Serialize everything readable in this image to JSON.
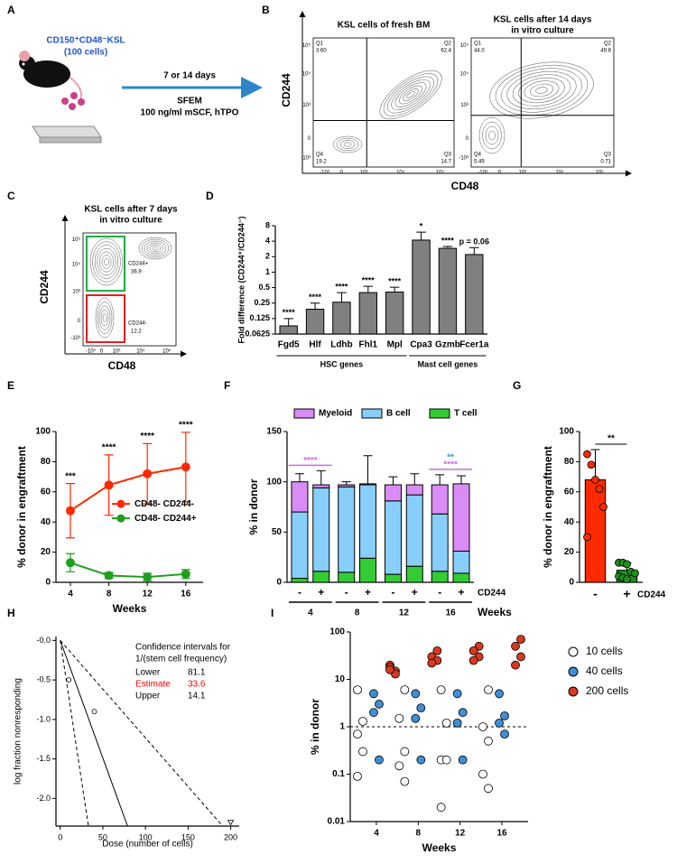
{
  "panels": [
    "A",
    "B",
    "C",
    "D",
    "E",
    "F",
    "G",
    "H",
    "I"
  ],
  "schematic": {
    "cells": "CD150⁺CD48⁻KSL",
    "count": "(100 cells)",
    "duration": "7 or 14 days",
    "medium": "SFEM",
    "factors": "100 ng/ml mSCF, hTPO"
  },
  "flow_b": {
    "plots": [
      {
        "title": [
          "KSL cells of fresh BM"
        ],
        "quadrants": [
          {
            "name": "Q1",
            "value": "3.60"
          },
          {
            "name": "Q2",
            "value": "62.4"
          },
          {
            "name": "Q4",
            "value": "19.2"
          },
          {
            "name": "Q3",
            "value": "14.7"
          }
        ]
      },
      {
        "title": [
          "KSL cells after 14 days",
          "in vitro culture"
        ],
        "quadrants": [
          {
            "name": "Q1",
            "value": "44.0"
          },
          {
            "name": "Q2",
            "value": "49.8"
          },
          {
            "name": "Q4",
            "value": "5.49"
          },
          {
            "name": "Q3",
            "value": "0.71"
          }
        ]
      }
    ],
    "ylabel": "CD244",
    "xlabel": "CD48",
    "y_tick_labels": [
      "10⁵",
      "10⁴",
      "10³",
      "0",
      "-10³"
    ],
    "x_tick_labels": [
      "-10³",
      "0",
      "10³",
      "10⁴",
      "10⁵"
    ]
  },
  "flow_c": {
    "title": [
      "KSL cells after 7 days",
      "in vitro culture"
    ],
    "gates": [
      {
        "name": "CD244+",
        "value": "36.9",
        "color": "#22aa44"
      },
      {
        "name": "CD244-",
        "value": "12.2",
        "color": "#e02020"
      }
    ],
    "ylabel": "CD244",
    "xlabel": "CD48",
    "y_tick_labels": [
      "10⁵",
      "10⁴",
      "10³",
      "0",
      "-10³"
    ],
    "x_tick_labels": [
      "-10³",
      "0",
      "10³",
      "10⁴",
      "10⁵"
    ]
  },
  "chart_data": [
    {
      "type": "bar",
      "ylabel": "Fold difference (CD244⁺/CD244⁻)",
      "categories": [
        "Fgd5",
        "Hlf",
        "Ldhb",
        "Fhl1",
        "Mpl",
        "Cpa3",
        "Gzmb",
        "Fcer1a"
      ],
      "values": [
        0.09,
        0.19,
        0.26,
        0.4,
        0.41,
        4.2,
        2.9,
        2.2
      ],
      "errors": [
        0.035,
        0.06,
        0.14,
        0.13,
        0.1,
        1.8,
        0.25,
        0.8
      ],
      "annotations": [
        "****",
        "****",
        "****",
        "****",
        "****",
        "*",
        "****",
        "p = 0.06"
      ],
      "groups": [
        {
          "label": "HSC genes",
          "members": [
            "Fgd5",
            "Hlf",
            "Ldhb",
            "Fhl1",
            "Mpl"
          ]
        },
        {
          "label": "Mast cell genes",
          "members": [
            "Cpa3",
            "Gzmb",
            "Fcer1a"
          ]
        }
      ],
      "color": "#808080",
      "log_base": 2,
      "ylim": [
        0.0625,
        8
      ],
      "yticks": [
        8,
        4,
        2,
        1,
        0.5,
        0.25,
        0.125,
        0.0625
      ]
    },
    {
      "type": "line",
      "xlabel": "Weeks",
      "ylabel": "% donor in engraftment",
      "x": [
        4,
        8,
        12,
        16
      ],
      "series": [
        {
          "name": "CD48- CD244-",
          "color": "#ff2a00",
          "values": [
            47.5,
            64.5,
            72,
            76.5
          ],
          "errors": [
            18,
            20,
            20,
            23
          ]
        },
        {
          "name": "CD48- CD244+",
          "color": "#1f9e1f",
          "values": [
            13,
            4.5,
            3.5,
            5.5
          ],
          "errors": [
            6,
            2,
            2.5,
            3
          ]
        }
      ],
      "annotations": [
        "***",
        "****",
        "****",
        "****"
      ],
      "legend": "center-right",
      "xlim": [
        2.5,
        17.8
      ],
      "xticks": [
        4,
        8,
        12,
        16
      ],
      "ylim": [
        0,
        100
      ],
      "yticks": [
        0,
        20,
        40,
        60,
        80,
        100
      ]
    },
    {
      "type": "stacked_bar",
      "ylabel": "% in donor",
      "categories": [
        "-",
        "+",
        "-",
        "+",
        "-",
        "+",
        "-",
        "+"
      ],
      "category_label": "CD244",
      "groups": [
        {
          "label": "4",
          "annotations": [
            {
              "text": "****",
              "color": "#c86ee6"
            }
          ]
        },
        {
          "label": "8"
        },
        {
          "label": "12"
        },
        {
          "label": "16",
          "annotations": [
            {
              "text": "**",
              "color": "#2a9fc9"
            },
            {
              "text": "****",
              "color": "#c86ee6"
            }
          ]
        }
      ],
      "group_label": "Weeks",
      "series": [
        {
          "name": "Myeloid",
          "color": "#d98cf5",
          "values": [
            30,
            3,
            2,
            1,
            16,
            10,
            29,
            67
          ],
          "errors": [
            8,
            14,
            3,
            28,
            8,
            11,
            10,
            8
          ]
        },
        {
          "name": "B cell",
          "color": "#87cefa",
          "values": [
            66,
            83,
            85,
            73,
            73,
            71,
            57,
            22
          ]
        },
        {
          "name": "T cell",
          "color": "#33cc33",
          "values": [
            4,
            11,
            10,
            24,
            8,
            16,
            11,
            9
          ]
        }
      ],
      "legend": "top",
      "ylim": [
        0,
        150
      ],
      "yticks": [
        0,
        50,
        100,
        150
      ]
    },
    {
      "type": "bar_dot",
      "ylabel": "% donor in engraftment",
      "xlabel": "CD244",
      "categories": [
        "-",
        "+"
      ],
      "values": [
        68,
        8
      ],
      "errors": [
        20,
        5
      ],
      "colors": [
        "#ff2a00",
        "#1f8f1f"
      ],
      "points": [
        [
          85,
          78,
          68,
          62,
          50,
          30
        ],
        [
          13,
          13,
          12,
          7,
          6,
          4,
          3,
          2
        ]
      ],
      "annotation": "**",
      "ylim": [
        0,
        100
      ],
      "yticks": [
        0,
        20,
        40,
        60,
        80,
        100
      ]
    },
    {
      "type": "limiting_dilution",
      "xlabel": "Dose (number of cells)",
      "ylabel": "log fraction nonresponding",
      "x": [
        10,
        40,
        200
      ],
      "values": [
        -0.5,
        -0.9,
        -2.3
      ],
      "markers": [
        "circle",
        "circle",
        "triangle"
      ],
      "ci_title": [
        "Confidence intervals for",
        "1/(stem cell frequency)"
      ],
      "ci": [
        {
          "label": "Lower",
          "value": 81.1,
          "dash": true
        },
        {
          "label": "Estimate",
          "value": 33.6,
          "color": "#ff0000",
          "dash": false
        },
        {
          "label": "Upper",
          "value": 14.1,
          "dash": true
        }
      ],
      "xlim": [
        -5,
        210
      ],
      "xticks": [
        0,
        50,
        100,
        150,
        200
      ],
      "ylim": [
        -2.35,
        0.05
      ],
      "yticks": [
        {
          "value": 0,
          "label": "-0.0"
        },
        -0.5,
        {
          "value": -1,
          "label": "-1.0"
        },
        -1.5,
        {
          "value": -2,
          "label": "-2.0"
        }
      ]
    },
    {
      "type": "scatter",
      "xlabel": "Weeks",
      "ylabel": "% in donor",
      "series": [
        {
          "name": "10 cells",
          "color": "#ffffff",
          "x": [
            4,
            4,
            4,
            4,
            4,
            8,
            8,
            8,
            8,
            8,
            12,
            12,
            12,
            12,
            12,
            16,
            16,
            16,
            16,
            16
          ],
          "values": [
            6,
            1.3,
            0.7,
            0.3,
            0.09,
            6,
            1.5,
            0.3,
            0.15,
            0.07,
            6,
            1.2,
            0.2,
            0.2,
            0.02,
            6,
            1,
            0.5,
            0.1,
            0.05
          ]
        },
        {
          "name": "40 cells",
          "color": "#3d8fd6",
          "x": [
            4,
            4,
            4,
            4,
            8,
            8,
            8,
            8,
            12,
            12,
            12,
            12,
            16,
            16,
            16,
            16
          ],
          "values": [
            5,
            3,
            2,
            0.2,
            5,
            2.5,
            1.5,
            0.2,
            5,
            2,
            1.2,
            0.2,
            5,
            1.7,
            1.2,
            0.7
          ]
        },
        {
          "name": "200 cells",
          "color": "#d63a1e",
          "x": [
            4,
            4,
            4,
            4,
            4,
            8,
            8,
            8,
            8,
            12,
            12,
            12,
            12,
            16,
            16,
            16,
            16
          ],
          "values": [
            20,
            15,
            18,
            13,
            16,
            40,
            30,
            25,
            22,
            50,
            40,
            30,
            25,
            70,
            50,
            30,
            20
          ]
        }
      ],
      "reference_line": 1,
      "legend": "right",
      "log_base": 10,
      "xlim": [
        1.5,
        18.5
      ],
      "xticks": [
        4,
        8,
        12,
        16
      ],
      "ylim": [
        0.01,
        100
      ],
      "yticks": [
        0.01,
        0.1,
        1,
        10,
        100
      ]
    }
  ]
}
